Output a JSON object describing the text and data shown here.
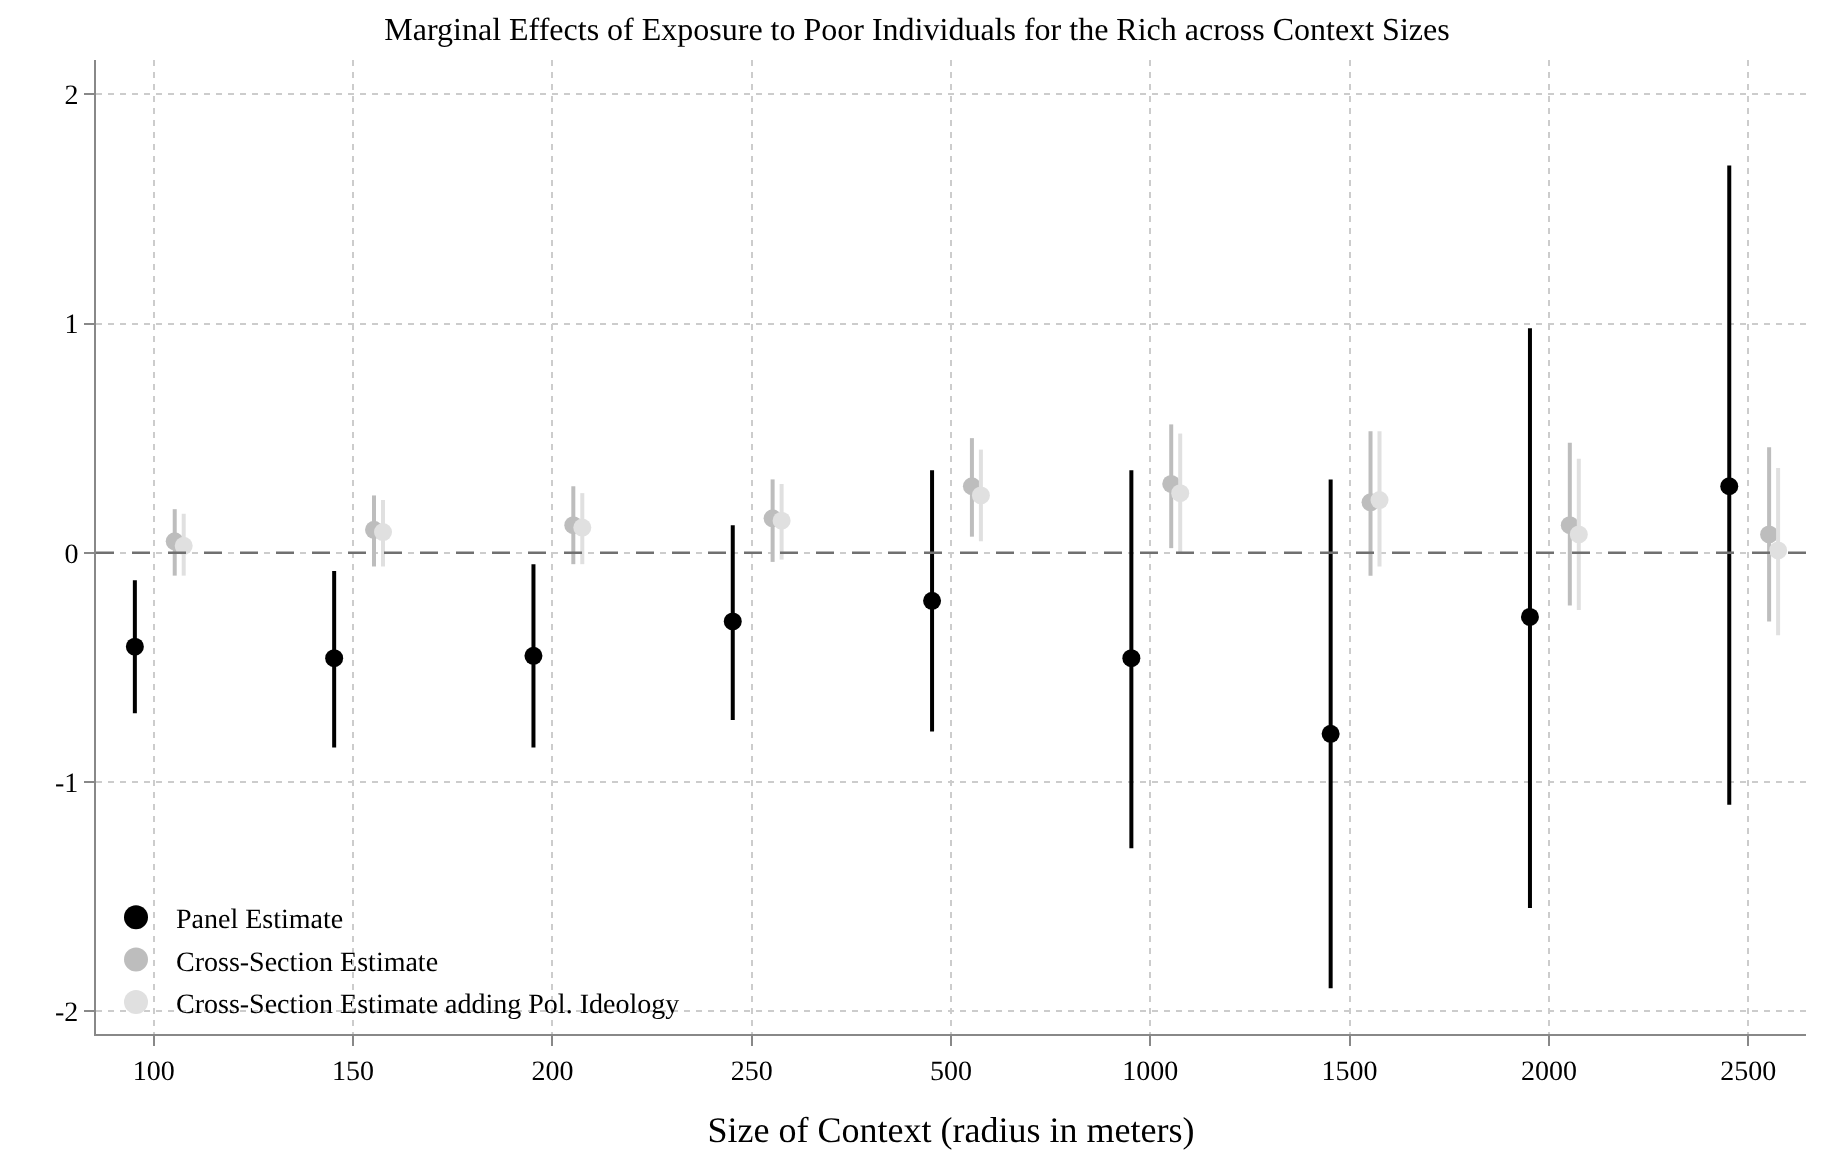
{
  "chart_data": {
    "type": "scatter",
    "title": "Marginal Effects of Exposure to Poor Individuals for the Rich across Context Sizes",
    "xlabel": "Size of Context (radius in meters)",
    "categories": [
      "100",
      "150",
      "200",
      "250",
      "500",
      "1000",
      "1500",
      "2000",
      "2500"
    ],
    "series": [
      {
        "name": "Panel Estimate",
        "color": "#000000",
        "values": [
          -0.41,
          -0.46,
          -0.45,
          -0.3,
          -0.21,
          -0.46,
          -0.79,
          -0.28,
          0.29
        ],
        "errors": [
          [
            -0.7,
            -0.12
          ],
          [
            -0.85,
            -0.08
          ],
          [
            -0.85,
            -0.05
          ],
          [
            -0.73,
            0.12
          ],
          [
            -0.78,
            0.36
          ],
          [
            -1.29,
            0.36
          ],
          [
            -1.9,
            0.32
          ],
          [
            -1.55,
            0.98
          ],
          [
            -1.1,
            1.69
          ]
        ]
      },
      {
        "name": "Cross-Section Estimate",
        "color": "#bdbdbd",
        "values": [
          0.05,
          0.1,
          0.12,
          0.15,
          0.29,
          0.3,
          0.22,
          0.12,
          0.08
        ],
        "errors": [
          [
            -0.1,
            0.19
          ],
          [
            -0.06,
            0.25
          ],
          [
            -0.05,
            0.29
          ],
          [
            -0.04,
            0.32
          ],
          [
            0.07,
            0.5
          ],
          [
            0.02,
            0.56
          ],
          [
            -0.1,
            0.53
          ],
          [
            -0.23,
            0.48
          ],
          [
            -0.3,
            0.46
          ]
        ]
      },
      {
        "name": "Cross-Section Estimate adding Pol. Ideology",
        "color": "#e0e0e0",
        "values": [
          0.03,
          0.09,
          0.11,
          0.14,
          0.25,
          0.26,
          0.23,
          0.08,
          0.01
        ],
        "errors": [
          [
            -0.1,
            0.17
          ],
          [
            -0.06,
            0.23
          ],
          [
            -0.05,
            0.26
          ],
          [
            -0.03,
            0.3
          ],
          [
            0.05,
            0.45
          ],
          [
            0.0,
            0.52
          ],
          [
            -0.06,
            0.53
          ],
          [
            -0.25,
            0.41
          ],
          [
            -0.36,
            0.37
          ]
        ]
      }
    ],
    "ylim": [
      -2.1,
      2.15
    ],
    "yticks": [
      -2,
      -1,
      0,
      1,
      2
    ],
    "ref_lines": [
      {
        "axis": "y",
        "value": 0,
        "color": "#707070",
        "line_style": "dashed"
      }
    ],
    "grid": true,
    "legend": "bottom left",
    "marker": "circle"
  }
}
